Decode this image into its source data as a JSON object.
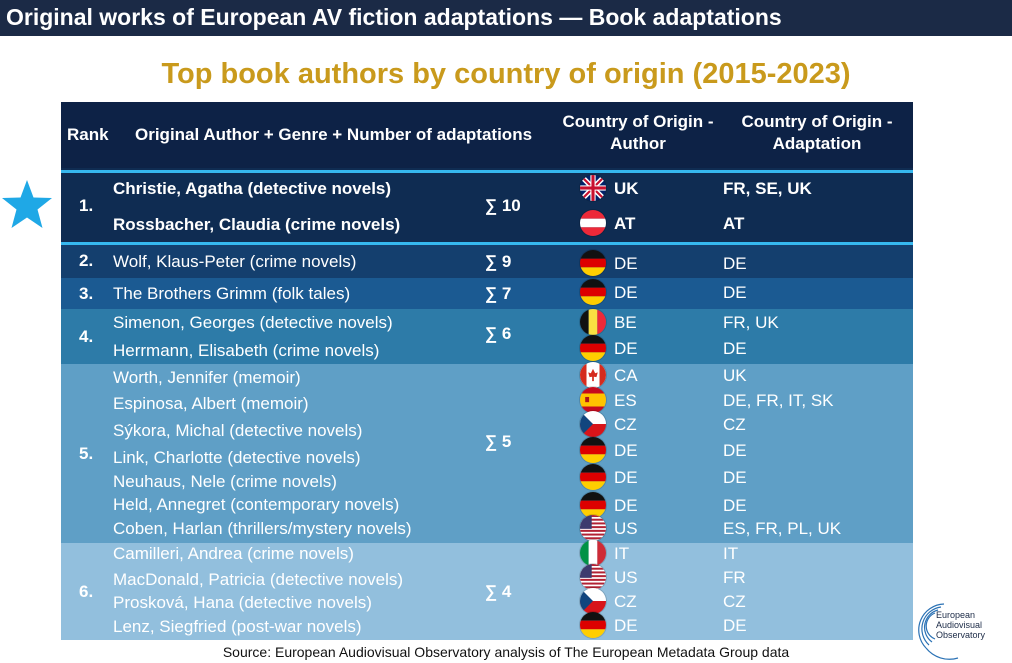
{
  "banner": "Original works of European AV fiction adaptations — Book adaptations",
  "subtitle": "Top book authors by country of origin (2015-2023)",
  "header": {
    "rank": "Rank",
    "author": "Original Author + Genre + Number of adaptations",
    "origin_author": "Country of Origin - Author",
    "origin_adaptation": "Country of Origin - Adaptation"
  },
  "colors": {
    "banner": "#1b2a46",
    "subtitle": "#c99a1c",
    "header_bg": "#0d2246",
    "rank1_bg": "#0f2c52",
    "rank2_bg": "#143f6e",
    "rank3_bg": "#1b5a92",
    "rank4_bg": "#2d7ba8",
    "rank5_bg": "#5f9fc6",
    "rank6_bg": "#92bfdd",
    "separator": "#36b8ef",
    "star": "#1fa8e6"
  },
  "groups": [
    {
      "rank": "1.",
      "count": "∑ 10",
      "entries": [
        {
          "author": "Christie, Agatha (detective novels)",
          "flag": "gb-flag-icon",
          "country": "UK",
          "adaptation": "FR, SE, UK"
        },
        {
          "author": "Rossbacher, Claudia (crime novels)",
          "flag": "at-flag-icon",
          "country": "AT",
          "adaptation": "AT"
        }
      ]
    },
    {
      "rank": "2.",
      "count": "∑ 9",
      "entries": [
        {
          "author": "Wolf, Klaus-Peter (crime novels)",
          "flag": "de-flag-icon",
          "country": "DE",
          "adaptation": "DE"
        }
      ]
    },
    {
      "rank": "3.",
      "count": "∑ 7",
      "entries": [
        {
          "author": "The Brothers Grimm (folk tales)",
          "flag": "de-flag-icon",
          "country": "DE",
          "adaptation": "DE"
        }
      ]
    },
    {
      "rank": "4.",
      "count": "∑ 6",
      "entries": [
        {
          "author": "Simenon, Georges (detective novels)",
          "flag": "be-flag-icon",
          "country": "BE",
          "adaptation": "FR, UK"
        },
        {
          "author": "Herrmann, Elisabeth (crime novels)",
          "flag": "de-flag-icon",
          "country": "DE",
          "adaptation": "DE"
        }
      ]
    },
    {
      "rank": "5.",
      "count": "∑ 5",
      "entries": [
        {
          "author": "Worth, Jennifer (memoir)",
          "flag": "ca-flag-icon",
          "country": "CA",
          "adaptation": "UK"
        },
        {
          "author": "Espinosa, Albert (memoir)",
          "flag": "es-flag-icon",
          "country": "ES",
          "adaptation": "DE, FR, IT, SK"
        },
        {
          "author": "Sýkora, Michal (detective novels)",
          "flag": "cz-flag-icon",
          "country": "CZ",
          "adaptation": "CZ"
        },
        {
          "author": "Link, Charlotte (detective novels)",
          "flag": "de-flag-icon",
          "country": "DE",
          "adaptation": "DE"
        },
        {
          "author": "Neuhaus, Nele (crime novels)",
          "flag": "de-flag-icon",
          "country": "DE",
          "adaptation": "DE"
        },
        {
          "author": "Held, Annegret (contemporary novels)",
          "flag": "de-flag-icon",
          "country": "DE",
          "adaptation": "DE"
        },
        {
          "author": "Coben, Harlan (thrillers/mystery novels)",
          "flag": "us-flag-icon",
          "country": "US",
          "adaptation": "ES, FR, PL, UK"
        }
      ]
    },
    {
      "rank": "6.",
      "count": "∑ 4",
      "entries": [
        {
          "author": "Camilleri, Andrea (crime novels)",
          "flag": "it-flag-icon",
          "country": "IT",
          "adaptation": "IT"
        },
        {
          "author": "MacDonald, Patricia (detective novels)",
          "flag": "us-flag-icon",
          "country": "US",
          "adaptation": "FR"
        },
        {
          "author": "Prosková, Hana (detective novels)",
          "flag": "cz-flag-icon",
          "country": "CZ",
          "adaptation": "CZ"
        },
        {
          "author": "Lenz, Siegfried (post-war novels)",
          "flag": "de-flag-icon",
          "country": "DE",
          "adaptation": "DE"
        }
      ]
    }
  ],
  "source": "Source: European Audiovisual Observatory analysis of The European Metadata Group data",
  "logo": {
    "line1": "European",
    "line2": "Audiovisual",
    "line3": "Observatory"
  }
}
